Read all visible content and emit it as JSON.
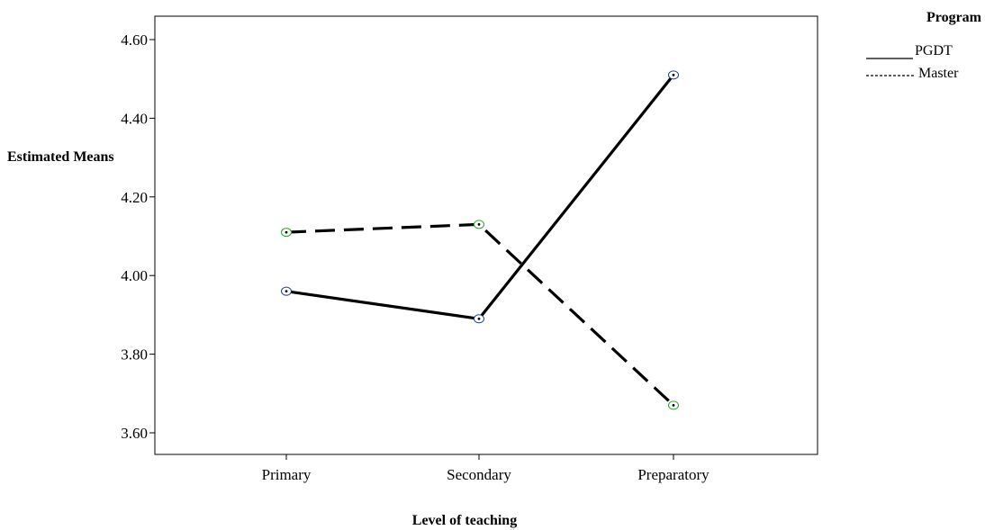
{
  "chart_data": {
    "type": "line",
    "title": "",
    "xlabel": "Level of teaching",
    "ylabel": "Estimated Means",
    "categories": [
      "Primary",
      "Secondary",
      "Preparatory"
    ],
    "ylim": [
      3.55,
      4.66
    ],
    "yticks": [
      3.6,
      3.8,
      4.0,
      4.2,
      4.4,
      4.6
    ],
    "ytick_labels": [
      "3.60",
      "3.80",
      "4.00",
      "4.20",
      "4.40",
      "4.60"
    ],
    "grid": false,
    "legend_title": "Program",
    "legend_position": "top-right",
    "series": [
      {
        "name": "PGDT",
        "values": [
          3.96,
          3.89,
          4.51
        ],
        "line_style": "solid",
        "marker_color": "#1f3a93"
      },
      {
        "name": "Master",
        "values": [
          4.11,
          4.13,
          3.67
        ],
        "line_style": "dashed",
        "marker_color": "#2ca02c"
      }
    ]
  }
}
